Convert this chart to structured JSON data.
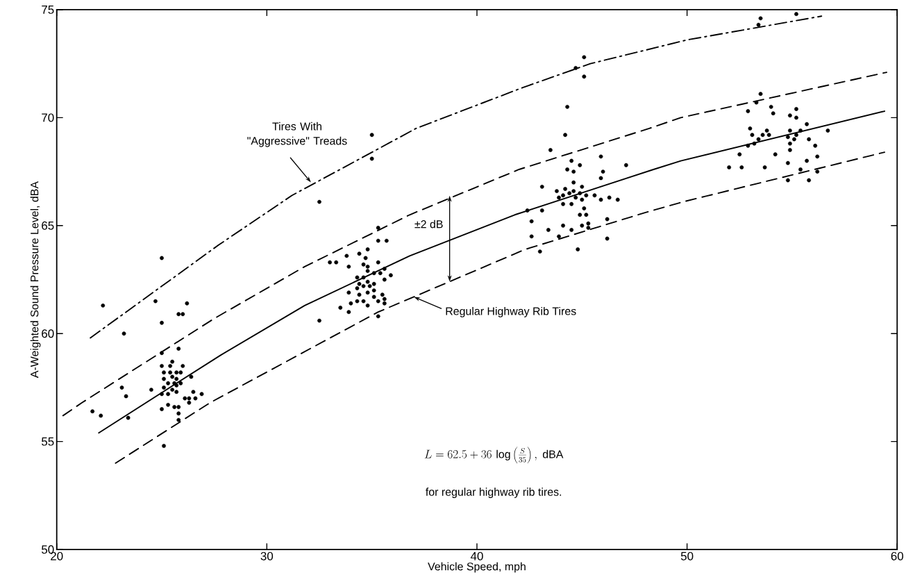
{
  "chart_data": {
    "type": "scatter",
    "xlabel": "Vehicle Speed, mph",
    "ylabel": "A-Weighted Sound Pressure Level, dBA",
    "xlim": [
      20,
      60
    ],
    "ylim": [
      50,
      75
    ],
    "xticks": [
      20,
      30,
      40,
      50,
      60
    ],
    "yticks": [
      50,
      55,
      60,
      65,
      70,
      75
    ],
    "series": [
      {
        "color": "#000000",
        "marker": "circle",
        "x": [
          25.0,
          22.2,
          24.7,
          26.2,
          25.8,
          26.0,
          25.0,
          23.2,
          25.0,
          25.8,
          25.5,
          25.0,
          25.4,
          26.0,
          25.1,
          25.4,
          25.7,
          25.9,
          25.1,
          25.5,
          25.7,
          26.4,
          25.3,
          25.6,
          25.7,
          25.9,
          25.1,
          23.1,
          24.5,
          25.0,
          25.3,
          25.5,
          25.7,
          23.3,
          26.5,
          26.9,
          26.1,
          26.3,
          26.6,
          26.3,
          25.3,
          25.6,
          25.8,
          25.0,
          21.7,
          22.1,
          25.8,
          23.4,
          25.8,
          25.1,
          35.0,
          35.0,
          32.5,
          35.3,
          35.3,
          35.7,
          34.8,
          34.4,
          33.8,
          34.7,
          33.0,
          33.3,
          35.3,
          33.9,
          34.6,
          34.8,
          35.6,
          34.8,
          35.1,
          35.4,
          35.9,
          34.3,
          34.6,
          35.6,
          34.4,
          34.8,
          34.9,
          35.1,
          34.3,
          34.6,
          34.8,
          35.1,
          33.9,
          34.4,
          35.5,
          35.1,
          35.6,
          34.3,
          34.6,
          34.0,
          35.3,
          35.6,
          33.5,
          34.8,
          33.9,
          35.3,
          32.5,
          45.1,
          44.7,
          45.1,
          44.3,
          44.2,
          43.5,
          44.5,
          45.9,
          44.3,
          44.6,
          44.9,
          46.0,
          47.1,
          45.9,
          44.6,
          43.1,
          45.0,
          43.8,
          44.2,
          44.6,
          43.9,
          44.1,
          44.4,
          44.7,
          44.9,
          45.2,
          45.6,
          45.9,
          46.3,
          46.7,
          45.0,
          44.1,
          44.5,
          42.4,
          43.1,
          45.1,
          44.9,
          45.2,
          42.6,
          46.2,
          45.3,
          44.1,
          45.0,
          43.4,
          44.5,
          45.3,
          42.6,
          43.9,
          46.2,
          44.8,
          43.0,
          53.5,
          53.4,
          55.2,
          53.5,
          53.3,
          52.9,
          54.0,
          54.1,
          55.2,
          54.9,
          55.2,
          55.7,
          56.7,
          53.0,
          53.8,
          53.1,
          53.6,
          53.9,
          53.4,
          53.2,
          52.9,
          54.9,
          55.4,
          55.2,
          54.8,
          55.1,
          55.8,
          54.9,
          56.1,
          54.9,
          52.5,
          54.2,
          56.2,
          55.7,
          54.8,
          52.0,
          52.6,
          53.7,
          55.4,
          56.2,
          54.8,
          55.8
        ],
        "values": [
          63.5,
          61.3,
          61.5,
          61.4,
          60.9,
          60.9,
          60.5,
          60.0,
          59.1,
          59.3,
          58.7,
          58.5,
          58.5,
          58.5,
          58.2,
          58.2,
          58.2,
          58.2,
          57.9,
          58.0,
          57.9,
          58.0,
          57.7,
          57.7,
          57.6,
          57.7,
          57.5,
          57.5,
          57.4,
          57.2,
          57.2,
          57.4,
          57.3,
          57.1,
          57.3,
          57.2,
          57.0,
          57.0,
          57.0,
          56.8,
          56.7,
          56.6,
          56.6,
          56.5,
          56.4,
          56.2,
          56.3,
          56.1,
          56.0,
          54.8,
          69.2,
          68.1,
          66.1,
          64.9,
          64.3,
          64.3,
          63.9,
          63.7,
          63.6,
          63.5,
          63.3,
          63.3,
          63.3,
          63.1,
          63.2,
          63.1,
          63.0,
          62.9,
          62.8,
          62.8,
          62.7,
          62.6,
          62.6,
          62.5,
          62.3,
          62.4,
          62.2,
          62.3,
          62.1,
          62.2,
          61.9,
          62.0,
          61.9,
          61.8,
          61.8,
          61.7,
          61.6,
          61.5,
          61.5,
          61.4,
          61.5,
          61.4,
          61.2,
          61.3,
          61.0,
          60.8,
          60.6,
          72.8,
          72.3,
          71.9,
          70.5,
          69.2,
          68.5,
          68.0,
          68.2,
          67.6,
          67.5,
          67.8,
          67.5,
          67.8,
          67.2,
          67.0,
          66.8,
          66.8,
          66.6,
          66.7,
          66.6,
          66.3,
          66.4,
          66.5,
          66.3,
          66.5,
          66.4,
          66.4,
          66.2,
          66.3,
          66.2,
          66.2,
          66.0,
          66.0,
          65.7,
          65.7,
          65.8,
          65.5,
          65.5,
          65.2,
          65.3,
          65.1,
          65.0,
          65.0,
          64.8,
          64.8,
          64.9,
          64.5,
          64.5,
          64.4,
          63.9,
          63.8,
          74.6,
          74.3,
          74.8,
          71.1,
          70.7,
          70.3,
          70.5,
          70.2,
          70.4,
          70.1,
          70.0,
          69.7,
          69.4,
          69.5,
          69.4,
          69.2,
          69.2,
          69.2,
          69.0,
          68.8,
          68.7,
          69.4,
          69.4,
          69.2,
          69.1,
          69.0,
          69.0,
          68.8,
          68.7,
          68.5,
          68.3,
          68.3,
          68.2,
          68.0,
          67.9,
          67.7,
          67.7,
          67.7,
          67.6,
          67.5,
          67.1,
          67.1
        ]
      },
      {
        "type": "line",
        "color": "#000000",
        "line_style": "solid",
        "marker": "none",
        "x": [
          22.0,
          27.8,
          31.8,
          36.8,
          41.8,
          48.4,
          49.7,
          59.4
        ],
        "values": [
          55.4,
          59.0,
          61.3,
          63.6,
          65.5,
          67.6,
          68.0,
          70.3
        ]
      },
      {
        "type": "line",
        "color": "#000000",
        "line_style": "dashed",
        "marker": "none",
        "x": [
          20.3,
          21.2,
          27.5,
          31.8,
          36.8,
          42.0,
          48.2,
          49.7,
          59.5
        ],
        "values": [
          56.2,
          56.8,
          60.7,
          63.1,
          65.5,
          67.6,
          69.5,
          70.0,
          72.1
        ]
      },
      {
        "type": "line",
        "color": "#000000",
        "line_style": "dashed",
        "marker": "none",
        "x": [
          22.8,
          27.3,
          35.3,
          42.3,
          48.0,
          49.8,
          59.4
        ],
        "values": [
          54.0,
          56.8,
          61.0,
          63.9,
          65.6,
          66.1,
          68.4
        ]
      },
      {
        "type": "line",
        "color": "#000000",
        "line_style": "dashdot",
        "marker": "none",
        "x": [
          21.6,
          27.7,
          31.2,
          37.1,
          42.2,
          45.4,
          50.0,
          56.4
        ],
        "values": [
          59.8,
          64.1,
          66.4,
          69.5,
          71.4,
          72.5,
          73.6,
          74.7
        ]
      }
    ],
    "annotations": [
      {
        "text": "Tires With \"Aggressive\" Treads",
        "x": 32.1,
        "y": 67.0
      },
      {
        "text": "Regular Highway Rib Tires",
        "x": 37.0,
        "y": 61.7
      },
      {
        "text": "±2 dB",
        "x": 38.7,
        "y": 64.4
      },
      "L = 62.5 + 36\\,\\log\\left(\\frac{S}{35}\\right)\\mathrm{,\\ dBA}",
      "for regular highway rib tires."
    ]
  }
}
